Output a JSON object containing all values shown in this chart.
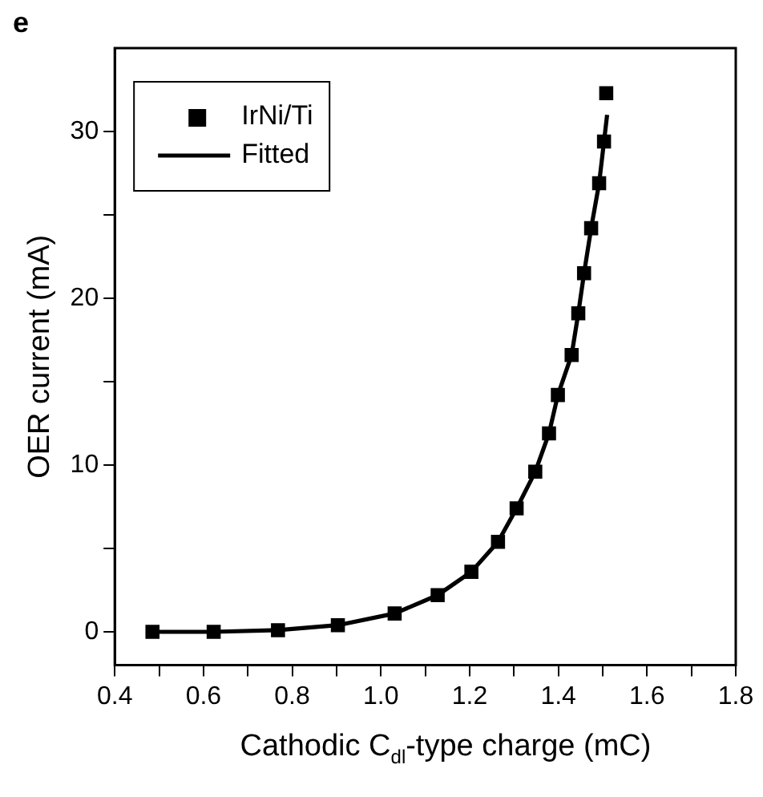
{
  "chart_data": {
    "type": "scatter",
    "xlabel": "Cathodic C$_{dl}$-type charge (mC)",
    "ylabel": "OER current (mA)",
    "annotations": [
      "e"
    ],
    "xlim": [
      0.4,
      1.8
    ],
    "ylim": [
      -2,
      35
    ],
    "xticks": [
      0.4,
      {
        "value": 0.5,
        "label": null
      },
      0.6,
      {
        "value": 0.7,
        "label": null
      },
      0.8,
      {
        "value": 0.9,
        "label": null
      },
      {
        "value": 1.0,
        "label": "1.0"
      },
      {
        "value": 1.1,
        "label": null
      },
      1.2,
      {
        "value": 1.3,
        "label": null
      },
      1.4,
      {
        "value": 1.5,
        "label": null
      },
      1.6,
      {
        "value": 1.7,
        "label": null
      },
      1.8
    ],
    "yticks": [
      0,
      {
        "value": 5,
        "label": null
      },
      10,
      {
        "value": 15,
        "label": null
      },
      20,
      {
        "value": 25,
        "label": null
      },
      30
    ],
    "grid": false,
    "legend": "top left",
    "series": [
      {
        "name": "IrNi/Ti",
        "type": "scatter",
        "marker": "square",
        "color": "#000000",
        "x": [
          0.485,
          0.623,
          0.768,
          0.903,
          1.031,
          1.128,
          1.204,
          1.264,
          1.306,
          1.348,
          1.379,
          1.399,
          1.43,
          1.445,
          1.458,
          1.474,
          1.492,
          1.503,
          1.508
        ],
        "values": [
          0,
          0,
          0.1,
          0.4,
          1.1,
          2.2,
          3.6,
          5.4,
          7.4,
          9.6,
          11.9,
          14.2,
          16.6,
          19.1,
          21.5,
          24.2,
          26.9,
          29.4,
          32.3
        ]
      },
      {
        "name": "Fitted",
        "type": "line",
        "marker": "none",
        "line_style": "solid",
        "color": "#000000",
        "x": [
          0.485,
          0.623,
          0.768,
          0.903,
          1.031,
          1.128,
          1.204,
          1.264,
          1.306,
          1.348,
          1.379,
          1.399,
          1.43,
          1.445,
          1.458,
          1.474,
          1.492,
          1.503,
          1.51
        ],
        "values": [
          0,
          0,
          0.1,
          0.4,
          1.1,
          2.2,
          3.6,
          5.4,
          7.4,
          9.6,
          11.9,
          14.2,
          16.6,
          19.1,
          21.5,
          24.2,
          26.9,
          29.4,
          31.0
        ]
      }
    ]
  }
}
